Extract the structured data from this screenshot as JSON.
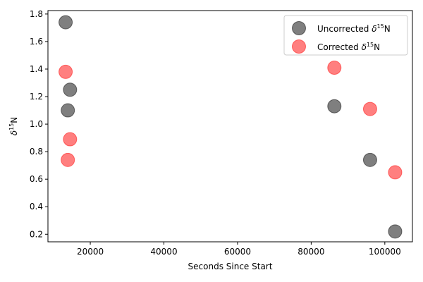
{
  "chart_data": {
    "type": "scatter",
    "xlabel": "Seconds Since Start",
    "ylabel_base": "δ",
    "ylabel_sup": "15",
    "ylabel_tail": "N",
    "xlim": [
      8500,
      107500
    ],
    "ylim": [
      0.145,
      1.825
    ],
    "xticks": [
      20000,
      40000,
      60000,
      80000,
      100000
    ],
    "xtick_labels": [
      "20000",
      "40000",
      "60000",
      "80000",
      "100000"
    ],
    "yticks": [
      0.2,
      0.4,
      0.6,
      0.8,
      1.0,
      1.2,
      1.4,
      1.6,
      1.8
    ],
    "ytick_labels": [
      "0.2",
      "0.4",
      "0.6",
      "0.8",
      "1.0",
      "1.2",
      "1.4",
      "1.6",
      "1.8"
    ],
    "grid": false,
    "legend_position": "top-right",
    "series": [
      {
        "name_base": "Uncorrected ",
        "name_delta": "δ",
        "name_sup": "15",
        "name_tail": "N",
        "color": "#000000",
        "opacity": 0.5,
        "points": [
          {
            "x": 13300,
            "y": 1.74
          },
          {
            "x": 14500,
            "y": 1.25
          },
          {
            "x": 13900,
            "y": 1.1
          },
          {
            "x": 86300,
            "y": 1.13
          },
          {
            "x": 96000,
            "y": 0.74
          },
          {
            "x": 102800,
            "y": 0.22
          }
        ]
      },
      {
        "name_base": "Corrected ",
        "name_delta": "δ",
        "name_sup": "15",
        "name_tail": "N",
        "color": "#ff0000",
        "opacity": 0.5,
        "points": [
          {
            "x": 13300,
            "y": 1.38
          },
          {
            "x": 14500,
            "y": 0.89
          },
          {
            "x": 13900,
            "y": 0.74
          },
          {
            "x": 86300,
            "y": 1.41
          },
          {
            "x": 96000,
            "y": 1.11
          },
          {
            "x": 102800,
            "y": 0.65
          }
        ]
      }
    ]
  }
}
